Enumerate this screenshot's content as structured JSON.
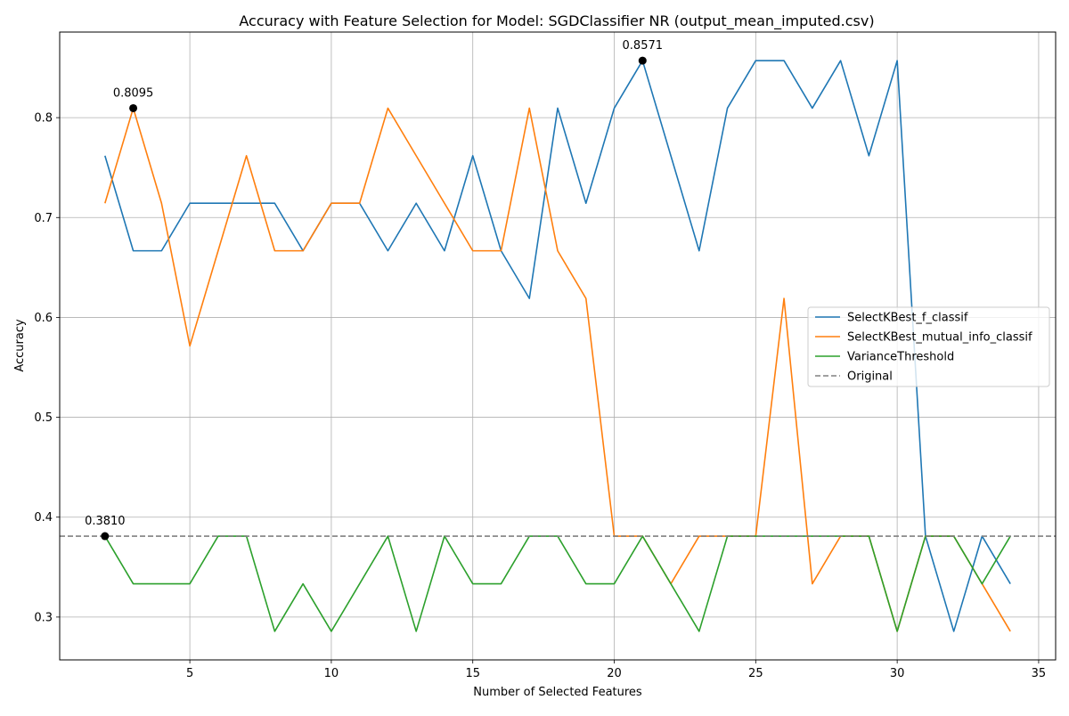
{
  "chart_data": {
    "type": "line",
    "title": "Accuracy with Feature Selection for Model: SGDClassifier NR (output_mean_imputed.csv)",
    "xlabel": "Number of Selected Features",
    "ylabel": "Accuracy",
    "xlim": [
      0.4,
      35.6
    ],
    "ylim": [
      0.2571,
      0.8857
    ],
    "xticks": [
      5,
      10,
      15,
      20,
      25,
      30,
      35
    ],
    "yticks": [
      0.3,
      0.4,
      0.5,
      0.6,
      0.7,
      0.8
    ],
    "x": [
      2,
      3,
      4,
      5,
      6,
      7,
      8,
      9,
      10,
      11,
      12,
      13,
      14,
      15,
      16,
      17,
      18,
      19,
      20,
      21,
      22,
      23,
      24,
      25,
      26,
      27,
      28,
      29,
      30,
      31,
      32,
      33,
      34
    ],
    "series": [
      {
        "name": "SelectKBest_f_classif",
        "color": "#1f77b4",
        "values": [
          0.7619,
          0.6667,
          0.6667,
          0.7143,
          0.7143,
          0.7143,
          0.7143,
          0.6667,
          0.7143,
          0.7143,
          0.6667,
          0.7143,
          0.6667,
          0.7619,
          0.6667,
          0.619,
          0.8095,
          0.7143,
          0.8095,
          0.8571,
          0.7619,
          0.6667,
          0.8095,
          0.8571,
          0.8571,
          0.8095,
          0.8571,
          0.7619,
          0.8571,
          0.381,
          0.2857,
          0.381,
          0.3333
        ]
      },
      {
        "name": "SelectKBest_mutual_info_classif",
        "color": "#ff7f0e",
        "values": [
          0.7143,
          0.8095,
          0.7143,
          0.5714,
          0.6667,
          0.7619,
          0.6667,
          0.6667,
          0.7143,
          0.7143,
          0.8095,
          0.7619,
          0.7143,
          0.6667,
          0.6667,
          0.8095,
          0.6667,
          0.619,
          0.381,
          0.381,
          0.3333,
          0.381,
          0.381,
          0.381,
          0.619,
          0.3333,
          0.381,
          0.381,
          0.2857,
          0.381,
          0.381,
          0.3333,
          0.2857
        ]
      },
      {
        "name": "VarianceThreshold",
        "color": "#2ca02c",
        "values": [
          0.381,
          0.3333,
          0.3333,
          0.3333,
          0.381,
          0.381,
          0.2857,
          0.3333,
          0.2857,
          0.3333,
          0.381,
          0.2857,
          0.381,
          0.3333,
          0.3333,
          0.381,
          0.381,
          0.3333,
          0.3333,
          0.381,
          0.3333,
          0.2857,
          0.381,
          0.381,
          0.381,
          0.381,
          0.381,
          0.381,
          0.2857,
          0.381,
          0.381,
          0.3333,
          0.381
        ]
      }
    ],
    "baseline": {
      "name": "Original",
      "value": 0.381,
      "color": "#808080",
      "style": "dashed"
    },
    "annotations": [
      {
        "x": 3,
        "y": 0.8095,
        "label": "0.8095"
      },
      {
        "x": 21,
        "y": 0.8571,
        "label": "0.8571"
      },
      {
        "x": 2,
        "y": 0.381,
        "label": "0.3810"
      }
    ],
    "grid": true,
    "legend_position": "center-right"
  }
}
